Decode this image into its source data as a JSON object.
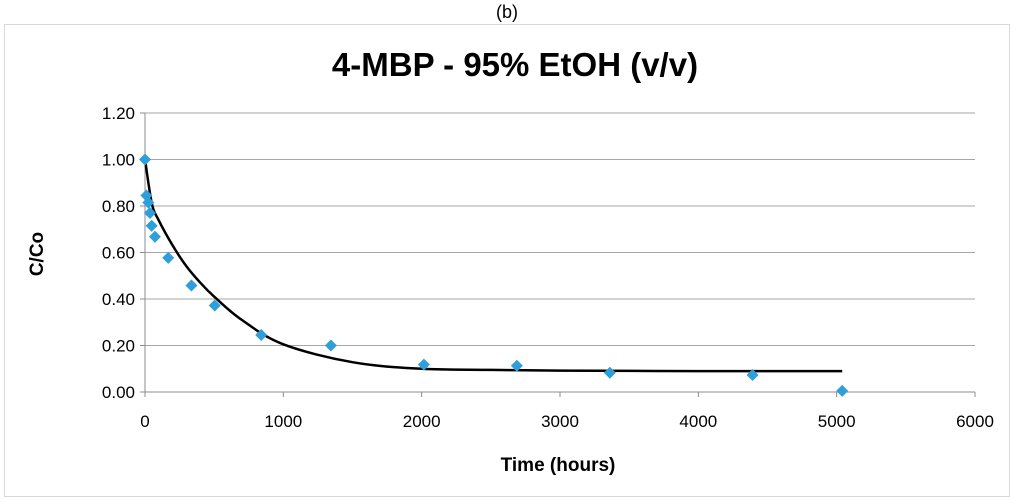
{
  "panel_label": "(b)",
  "chart_data": {
    "type": "scatter",
    "title": "4-MBP - 95% EtOH (v/v)",
    "xlabel": "Time (hours)",
    "ylabel": "C/Co",
    "xlim": [
      0,
      6000
    ],
    "ylim": [
      0,
      1.2
    ],
    "x_ticks": [
      0,
      1000,
      2000,
      3000,
      4000,
      5000,
      6000
    ],
    "x_tick_labels": [
      "0",
      "1000",
      "2000",
      "3000",
      "4000",
      "5000",
      "6000"
    ],
    "y_ticks": [
      0,
      0.2,
      0.4,
      0.6,
      0.8,
      1.0,
      1.2
    ],
    "y_tick_labels": [
      "0.00",
      "0.20",
      "0.40",
      "0.60",
      "0.80",
      "1.00",
      "1.20"
    ],
    "grid": "horizontal",
    "legend": "none",
    "series": [
      {
        "kind": "points",
        "marker": "diamond",
        "color": "#2e9fd8",
        "x": [
          0,
          10,
          24,
          36,
          48,
          72,
          168,
          336,
          504,
          840,
          1344,
          2016,
          2688,
          3360,
          4392,
          5040
        ],
        "y": [
          1.0,
          0.845,
          0.815,
          0.77,
          0.715,
          0.668,
          0.577,
          0.458,
          0.372,
          0.245,
          0.2,
          0.118,
          0.113,
          0.083,
          0.073,
          0.005
        ]
      },
      {
        "kind": "fit-line",
        "color": "#000000",
        "x": [
          0,
          50,
          100,
          200,
          300,
          400,
          500,
          700,
          1000,
          1500,
          2000,
          2500,
          3000,
          4000,
          5040
        ],
        "y": [
          1.0,
          0.81,
          0.738,
          0.63,
          0.54,
          0.47,
          0.41,
          0.31,
          0.205,
          0.128,
          0.1,
          0.095,
          0.092,
          0.09,
          0.09
        ]
      }
    ]
  }
}
